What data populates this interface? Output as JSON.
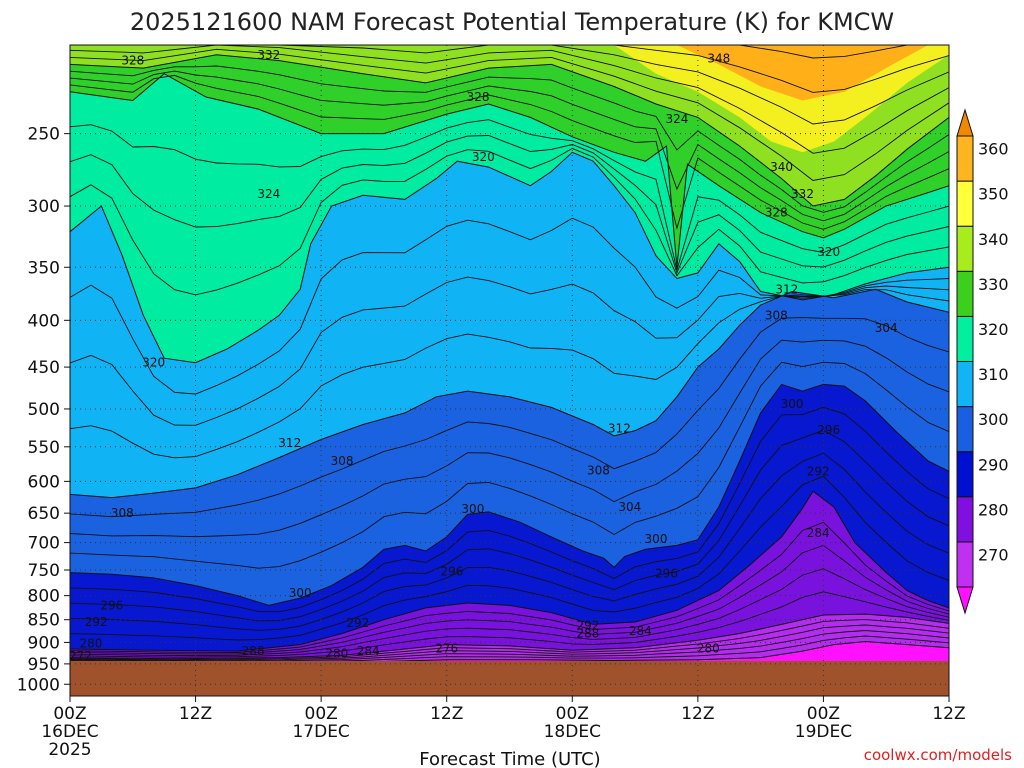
{
  "chart_data": {
    "type": "heatmap",
    "title": "2025121600 NAM Forecast Potential Temperature (K) for KMCW",
    "xlabel": "Forecast Time (UTC)",
    "credit": "coolwx.com/models",
    "y_ticks": [
      "250",
      "300",
      "350",
      "400",
      "450",
      "500",
      "550",
      "600",
      "650",
      "700",
      "750",
      "800",
      "850",
      "900",
      "950",
      "1000"
    ],
    "x_ticks": [
      {
        "time": "00Z",
        "date": "16DEC",
        "year": "2025"
      },
      {
        "time": "12Z",
        "date": "",
        "year": ""
      },
      {
        "time": "00Z",
        "date": "17DEC",
        "year": ""
      },
      {
        "time": "12Z",
        "date": "",
        "year": ""
      },
      {
        "time": "00Z",
        "date": "18DEC",
        "year": ""
      },
      {
        "time": "12Z",
        "date": "",
        "year": ""
      },
      {
        "time": "00Z",
        "date": "19DEC",
        "year": ""
      },
      {
        "time": "12Z",
        "date": "",
        "year": ""
      }
    ],
    "x_hours": [
      0,
      12,
      24,
      36,
      48,
      60,
      72,
      84
    ],
    "y_range_hpa": [
      200,
      1030
    ],
    "colorbar": {
      "levels": [
        270,
        280,
        290,
        300,
        310,
        320,
        330,
        340,
        350,
        360
      ],
      "labels": [
        "270",
        "280",
        "290",
        "300",
        "310",
        "320",
        "330",
        "340",
        "350",
        "360"
      ],
      "colors": [
        "#ff10ff",
        "#c030f0",
        "#8010e0",
        "#0010d0",
        "#1a5fe0",
        "#12b4f5",
        "#00f0a0",
        "#3ccf1e",
        "#a8ec1e",
        "#ffff3a",
        "#ffb420",
        "#f08800"
      ]
    },
    "contour_labels": [
      {
        "text": "328",
        "hour": 6,
        "p": 208
      },
      {
        "text": "332",
        "hour": 19,
        "p": 205
      },
      {
        "text": "328",
        "hour": 39,
        "p": 228
      },
      {
        "text": "348",
        "hour": 62,
        "p": 207
      },
      {
        "text": "324",
        "hour": 58,
        "p": 241
      },
      {
        "text": "320",
        "hour": 39.5,
        "p": 265
      },
      {
        "text": "340",
        "hour": 68,
        "p": 272
      },
      {
        "text": "332",
        "hour": 70,
        "p": 291
      },
      {
        "text": "328",
        "hour": 67.5,
        "p": 305
      },
      {
        "text": "324",
        "hour": 19,
        "p": 291
      },
      {
        "text": "320",
        "hour": 72.5,
        "p": 337
      },
      {
        "text": "312",
        "hour": 68.5,
        "p": 370
      },
      {
        "text": "308",
        "hour": 67.5,
        "p": 395
      },
      {
        "text": "304",
        "hour": 78,
        "p": 408
      },
      {
        "text": "320",
        "hour": 8,
        "p": 445
      },
      {
        "text": "300",
        "hour": 69,
        "p": 494
      },
      {
        "text": "296",
        "hour": 72.5,
        "p": 527
      },
      {
        "text": "312",
        "hour": 52.5,
        "p": 525
      },
      {
        "text": "312",
        "hour": 21,
        "p": 545
      },
      {
        "text": "308",
        "hour": 26,
        "p": 570
      },
      {
        "text": "308",
        "hour": 50.5,
        "p": 584
      },
      {
        "text": "292",
        "hour": 71.5,
        "p": 585
      },
      {
        "text": "304",
        "hour": 53.5,
        "p": 640
      },
      {
        "text": "300",
        "hour": 38.5,
        "p": 643
      },
      {
        "text": "308",
        "hour": 5,
        "p": 650
      },
      {
        "text": "284",
        "hour": 71.5,
        "p": 683
      },
      {
        "text": "300",
        "hour": 56,
        "p": 694
      },
      {
        "text": "296",
        "hour": 36.5,
        "p": 753
      },
      {
        "text": "296",
        "hour": 57,
        "p": 757
      },
      {
        "text": "300",
        "hour": 22,
        "p": 795
      },
      {
        "text": "296",
        "hour": 4,
        "p": 820
      },
      {
        "text": "292",
        "hour": 2.5,
        "p": 855
      },
      {
        "text": "292",
        "hour": 27.5,
        "p": 857
      },
      {
        "text": "292",
        "hour": 49.5,
        "p": 862
      },
      {
        "text": "288",
        "hour": 49.5,
        "p": 880
      },
      {
        "text": "284",
        "hour": 54.5,
        "p": 875
      },
      {
        "text": "280",
        "hour": 2,
        "p": 903
      },
      {
        "text": "276",
        "hour": 36,
        "p": 914
      },
      {
        "text": "280",
        "hour": 61,
        "p": 914
      },
      {
        "text": "288",
        "hour": 17.5,
        "p": 920
      },
      {
        "text": "284",
        "hour": 28.5,
        "p": 920
      },
      {
        "text": "280",
        "hour": 25.5,
        "p": 925
      },
      {
        "text": "272",
        "hour": 1,
        "p": 931
      }
    ]
  }
}
